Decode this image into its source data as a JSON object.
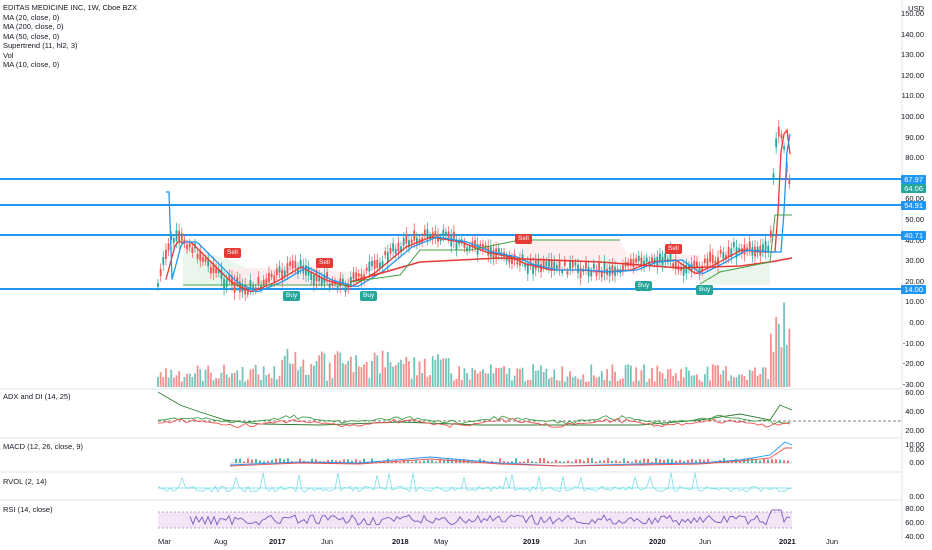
{
  "header": {
    "title": "EDITAS MEDICINE INC, 1W, Cboe BZX",
    "indicators": [
      "MA (20, close, 0)",
      "MA (200, close, 0)",
      "MA (50, close, 0)",
      "Supertrend (11, hl2, 3)",
      "Vol",
      "MA (10, close, 0)"
    ]
  },
  "currency": "USD",
  "price_axis": [
    "150.00",
    "140.00",
    "130.00",
    "120.00",
    "110.00",
    "100.00",
    "90.00",
    "80.00",
    "70.00",
    "60.00",
    "50.00",
    "40.00",
    "30.00",
    "20.00",
    "10.00",
    "0.00",
    "-10.00",
    "-20.00",
    "-30.00"
  ],
  "price_tags": [
    {
      "label": "67.97",
      "color": "#2196f3"
    },
    {
      "label": "64.06",
      "color": "#26a69a"
    },
    {
      "label": "54.91",
      "color": "#2196f3"
    },
    {
      "label": "40.71",
      "color": "#2196f3"
    },
    {
      "label": "14.00",
      "color": "#2196f3"
    }
  ],
  "signals": {
    "sell_label": "Sell",
    "buy_label": "Buy"
  },
  "panes": {
    "adx": {
      "title": "ADX and DI (14, 25)",
      "axis": [
        "60.00",
        "40.00",
        "20.00",
        "0.00"
      ]
    },
    "macd": {
      "title": "MACD (12, 26, close, 9)",
      "axis": [
        "10.00",
        "0.00"
      ]
    },
    "rvol": {
      "title": "RVOL (2, 14)",
      "axis": [
        "0.00"
      ]
    },
    "rsi": {
      "title": "RSI (14, close)",
      "axis": [
        "80.00",
        "60.00",
        "40.00"
      ]
    }
  },
  "time_axis": [
    "Mar",
    "Aug",
    "2017",
    "Jun",
    "2018",
    "May",
    "2019",
    "Jun",
    "2020",
    "Jun",
    "2021",
    "Jun"
  ],
  "colors": {
    "up": "#26a69a",
    "down": "#ef5350",
    "line": "#2196f3",
    "ma_red": "#e53935",
    "ma_green": "#43a047",
    "rsi_fill": "#f3e5f5"
  }
}
